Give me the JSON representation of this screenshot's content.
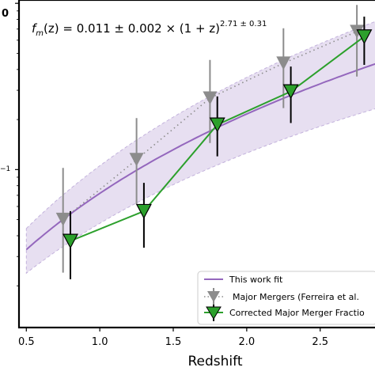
{
  "chart_data": {
    "type": "line",
    "formula_label": "f_m(z) = 0.011 ± 0.002 × (1 + z)^2.71 ± 0.31",
    "formula_parts": {
      "f": "f",
      "m": "m",
      "z_expr": "(z) = 0.011 ± 0.002 × (1 + z)",
      "exponent": "2.71 ± 0.31"
    },
    "xlabel": "Redshift",
    "ylabel": "",
    "x_ticks": [
      "0.5",
      "1.0",
      "1.5",
      "2.0",
      "2.5"
    ],
    "y_tick_labels_partial": [
      "0",
      "−1"
    ],
    "xlim": [
      0.45,
      2.9
    ],
    "y_scale": "log",
    "ylim_log10": [
      -1.95,
      0.02
    ],
    "legend_position": "lower-right",
    "fit_curve": {
      "name": "This work fit",
      "color": "#9467bd",
      "coefficient": 0.011,
      "exponent": 2.71,
      "coefficient_err": 0.002,
      "exponent_err": 0.31
    },
    "series": [
      {
        "name": "Major Mergers (Ferreira et al.",
        "color": "#8c8c8c",
        "marker": "triangle-down",
        "line": "dotted",
        "points": [
          {
            "x": 0.75,
            "y": 0.0501,
            "ylo": 0.024,
            "yhi": 0.1023
          },
          {
            "x": 1.25,
            "y": 0.1148,
            "ylo": 0.0617,
            "yhi": 0.2042
          },
          {
            "x": 1.75,
            "y": 0.2692,
            "ylo": 0.1445,
            "yhi": 0.4571
          },
          {
            "x": 2.25,
            "y": 0.4365,
            "ylo": 0.2344,
            "yhi": 0.7079
          },
          {
            "x": 2.75,
            "y": 0.6761,
            "ylo": 0.3631,
            "yhi": 0.9772
          }
        ]
      },
      {
        "name": "Corrected Major Merger Fractio",
        "color": "#2ca02c",
        "marker": "triangle-down",
        "line": "solid",
        "points": [
          {
            "x": 0.8,
            "y": 0.0372,
            "ylo": 0.0219,
            "yhi": 0.0562
          },
          {
            "x": 1.3,
            "y": 0.0562,
            "ylo": 0.0339,
            "yhi": 0.0832
          },
          {
            "x": 1.8,
            "y": 0.1862,
            "ylo": 0.1202,
            "yhi": 0.2754
          },
          {
            "x": 2.3,
            "y": 0.2951,
            "ylo": 0.1905,
            "yhi": 0.4169
          },
          {
            "x": 2.8,
            "y": 0.631,
            "ylo": 0.4266,
            "yhi": 0.8318
          }
        ]
      }
    ]
  }
}
